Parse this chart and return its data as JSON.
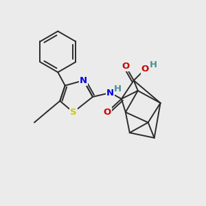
{
  "background_color": "#ebebeb",
  "bond_color": "#2a2a2a",
  "bond_width": 1.4,
  "atom_colors": {
    "N": "#0000dd",
    "S": "#cccc00",
    "O": "#cc0000",
    "H": "#4a9090",
    "C": "#2a2a2a"
  },
  "font_size_atom": 9.5,
  "figsize": [
    3.0,
    3.0
  ],
  "dpi": 100
}
